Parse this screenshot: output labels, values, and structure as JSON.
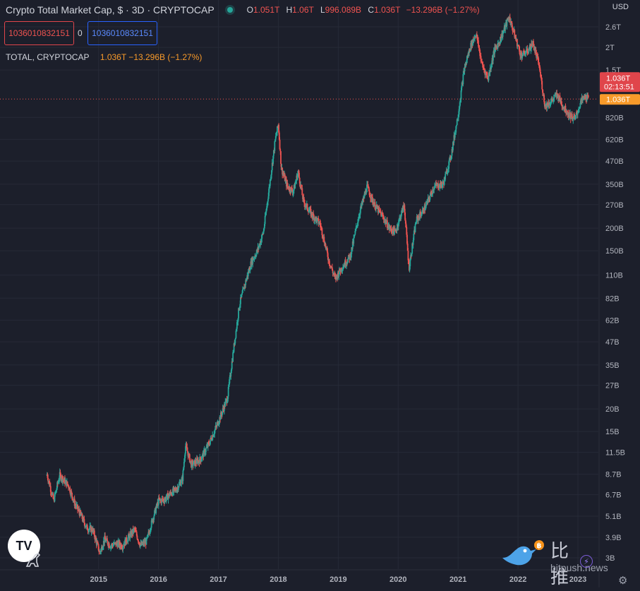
{
  "chart_data": {
    "type": "candlestick",
    "title": "Crypto Total Market Cap, $ · 3D · CRYPTOCAP",
    "symbol": "TOTAL, CRYPTOCAP",
    "interval": "3D",
    "currency": "USD",
    "ohlc": {
      "open_label": "O",
      "open": "1.051T",
      "high_label": "H",
      "high": "1.06T",
      "low_label": "L",
      "low": "996.089B",
      "close_label": "C",
      "close": "1.036T",
      "change": "−13.296B (−1.27%)"
    },
    "box_values": [
      "1036010832151",
      "1036010832151"
    ],
    "box_separator": "0",
    "legend_values": "1.036T  −13.296B (−1.27%)",
    "y_scale": "log",
    "y_ticks": [
      "2.6T",
      "2T",
      "1.5T",
      "820B",
      "620B",
      "470B",
      "350B",
      "270B",
      "200B",
      "150B",
      "110B",
      "82B",
      "62B",
      "47B",
      "35B",
      "27B",
      "20B",
      "15B",
      "11.5B",
      "8.7B",
      "6.7B",
      "5.1B",
      "3.9B",
      "3B"
    ],
    "y_tick_values": [
      2600000000000.0,
      2000000000000.0,
      1500000000000.0,
      820000000000.0,
      620000000000.0,
      470000000000.0,
      350000000000.0,
      270000000000.0,
      200000000000.0,
      150000000000.0,
      110000000000.0,
      82000000000.0,
      62000000000.0,
      47000000000.0,
      35000000000.0,
      27000000000.0,
      20000000000.0,
      15000000000.0,
      11500000000.0,
      8700000000.0,
      6700000000.0,
      5100000000.0,
      3900000000.0,
      3000000000.0
    ],
    "x_ticks": [
      "2015",
      "2016",
      "2017",
      "2018",
      "2019",
      "2020",
      "2021",
      "2022",
      "2023"
    ],
    "x_tick_values": [
      2015,
      2016,
      2017,
      2018,
      2019,
      2020,
      2021,
      2022,
      2023
    ],
    "x_range": [
      2014.12,
      2023.2
    ],
    "price_label": {
      "value": "1.036T",
      "countdown": "02:13:51"
    },
    "secondary_label": "1.036T",
    "current_value": 1036000000000.0,
    "series": [
      {
        "values": [
          [
            2014.14,
            8700000000.0
          ],
          [
            2014.25,
            6200000000.0
          ],
          [
            2014.35,
            8600000000.0
          ],
          [
            2014.5,
            7500000000.0
          ],
          [
            2014.6,
            6000000000.0
          ],
          [
            2014.7,
            5200000000.0
          ],
          [
            2014.8,
            4400000000.0
          ],
          [
            2014.9,
            4300000000.0
          ],
          [
            2015.02,
            3200000000.0
          ],
          [
            2015.1,
            3800000000.0
          ],
          [
            2015.2,
            3500000000.0
          ],
          [
            2015.3,
            3600000000.0
          ],
          [
            2015.4,
            3500000000.0
          ],
          [
            2015.5,
            3900000000.0
          ],
          [
            2015.6,
            4300000000.0
          ],
          [
            2015.7,
            3500000000.0
          ],
          [
            2015.8,
            3700000000.0
          ],
          [
            2015.9,
            4900000000.0
          ],
          [
            2016.0,
            6200000000.0
          ],
          [
            2016.1,
            6300000000.0
          ],
          [
            2016.2,
            6800000000.0
          ],
          [
            2016.3,
            7200000000.0
          ],
          [
            2016.4,
            8200000000.0
          ],
          [
            2016.45,
            12500000000.0
          ],
          [
            2016.55,
            9800000000.0
          ],
          [
            2016.7,
            10500000000.0
          ],
          [
            2016.85,
            13000000000.0
          ],
          [
            2017.0,
            17000000000.0
          ],
          [
            2017.15,
            23000000000.0
          ],
          [
            2017.25,
            42000000000.0
          ],
          [
            2017.35,
            75000000000.0
          ],
          [
            2017.45,
            100000000000.0
          ],
          [
            2017.55,
            130000000000.0
          ],
          [
            2017.65,
            150000000000.0
          ],
          [
            2017.75,
            190000000000.0
          ],
          [
            2017.85,
            340000000000.0
          ],
          [
            2017.95,
            620000000000.0
          ],
          [
            2018.0,
            750000000000.0
          ],
          [
            2018.05,
            430000000000.0
          ],
          [
            2018.15,
            340000000000.0
          ],
          [
            2018.25,
            320000000000.0
          ],
          [
            2018.33,
            410000000000.0
          ],
          [
            2018.42,
            280000000000.0
          ],
          [
            2018.55,
            240000000000.0
          ],
          [
            2018.7,
            210000000000.0
          ],
          [
            2018.85,
            130000000000.0
          ],
          [
            2018.95,
            105000000000.0
          ],
          [
            2019.05,
            120000000000.0
          ],
          [
            2019.2,
            140000000000.0
          ],
          [
            2019.35,
            240000000000.0
          ],
          [
            2019.48,
            340000000000.0
          ],
          [
            2019.6,
            270000000000.0
          ],
          [
            2019.75,
            230000000000.0
          ],
          [
            2019.85,
            200000000000.0
          ],
          [
            2019.95,
            190000000000.0
          ],
          [
            2020.1,
            270000000000.0
          ],
          [
            2020.18,
            120000000000.0
          ],
          [
            2020.3,
            220000000000.0
          ],
          [
            2020.45,
            260000000000.0
          ],
          [
            2020.6,
            340000000000.0
          ],
          [
            2020.75,
            350000000000.0
          ],
          [
            2020.88,
            500000000000.0
          ],
          [
            2021.0,
            850000000000.0
          ],
          [
            2021.1,
            1500000000000.0
          ],
          [
            2021.2,
            2000000000000.0
          ],
          [
            2021.3,
            2400000000000.0
          ],
          [
            2021.4,
            1600000000000.0
          ],
          [
            2021.5,
            1350000000000.0
          ],
          [
            2021.6,
            1900000000000.0
          ],
          [
            2021.7,
            2200000000000.0
          ],
          [
            2021.85,
            2950000000000.0
          ],
          [
            2021.95,
            2300000000000.0
          ],
          [
            2022.05,
            1800000000000.0
          ],
          [
            2022.15,
            1900000000000.0
          ],
          [
            2022.25,
            2100000000000.0
          ],
          [
            2022.35,
            1600000000000.0
          ],
          [
            2022.45,
            950000000000.0
          ],
          [
            2022.55,
            1000000000000.0
          ],
          [
            2022.65,
            1100000000000.0
          ],
          [
            2022.75,
            950000000000.0
          ],
          [
            2022.85,
            850000000000.0
          ],
          [
            2022.95,
            800000000000.0
          ],
          [
            2023.05,
            1000000000000.0
          ],
          [
            2023.12,
            1070000000000.0
          ],
          [
            2023.18,
            1036000000000.0
          ]
        ]
      }
    ],
    "colors": {
      "up": "#26a69a",
      "down": "#ef5350",
      "background": "#1c1f2b",
      "price_line": "#ef5350",
      "price_badge": "#e0454b",
      "secondary_badge": "#f89a2a"
    }
  },
  "logo": {
    "text": "TV"
  },
  "watermark": {
    "cn": "比推",
    "en": "bitpush.news"
  },
  "icons": [
    "tradingview-logo-icon",
    "dino-icon",
    "bird-logo-icon",
    "lightning-icon",
    "gear-icon"
  ]
}
